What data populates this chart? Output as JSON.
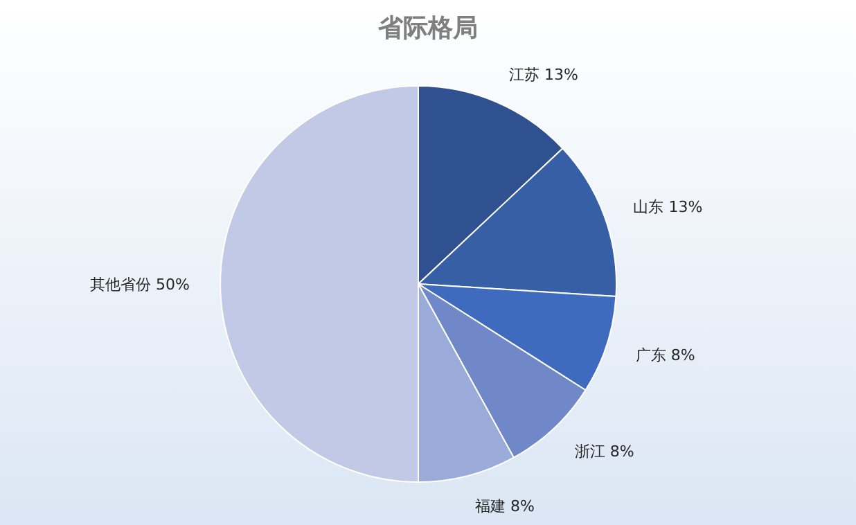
{
  "chart_data": {
    "type": "pie",
    "title": "省际格局",
    "categories": [
      "江苏",
      "山东",
      "广东",
      "浙江",
      "福建",
      "其他省份"
    ],
    "values": [
      13,
      13,
      8,
      8,
      8,
      50
    ],
    "value_labels": [
      "13%",
      "13%",
      "8%",
      "8%",
      "8%",
      "50%"
    ],
    "colors": [
      "#2f5190",
      "#365fa6",
      "#3e6bbd",
      "#7088c8",
      "#9aabd9",
      "#c1c9e6"
    ]
  }
}
